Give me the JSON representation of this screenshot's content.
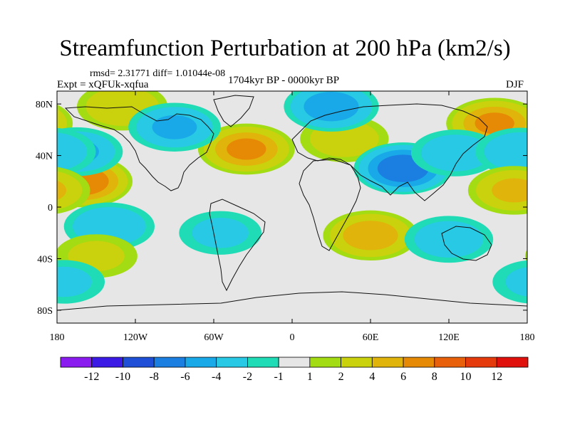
{
  "chart_data": {
    "type": "heatmap",
    "title": "Streamfunction Perturbation at 200 hPa (km2/s)",
    "stats_line": "rmsd= 2.31771 diff= 1.01044e-08",
    "experiment": "Expt = xQFUk-xqfua",
    "period": "1704kyr BP - 0000kyr BP",
    "season": "DJF",
    "xlim": [
      -180,
      180
    ],
    "ylim": [
      -90,
      90
    ],
    "x_ticks": [
      {
        "value": -180,
        "label": "180"
      },
      {
        "value": -120,
        "label": "120W"
      },
      {
        "value": -60,
        "label": "60W"
      },
      {
        "value": 0,
        "label": "0"
      },
      {
        "value": 60,
        "label": "60E"
      },
      {
        "value": 120,
        "label": "120E"
      },
      {
        "value": 180,
        "label": "180"
      }
    ],
    "y_ticks": [
      {
        "value": 80,
        "label": "80N"
      },
      {
        "value": 40,
        "label": "40N"
      },
      {
        "value": 0,
        "label": "0"
      },
      {
        "value": -40,
        "label": "40S"
      },
      {
        "value": -80,
        "label": "80S"
      }
    ],
    "colorbar": {
      "colors": [
        "#8a1cf0",
        "#3b1ae6",
        "#1f4fd6",
        "#1a7fe0",
        "#19a8e8",
        "#27c9e4",
        "#1fdcb6",
        "#e6e6e6",
        "#a3dc12",
        "#c9d20c",
        "#e0b40a",
        "#e68a06",
        "#e8600a",
        "#e43a0c",
        "#e0100c"
      ],
      "labels": [
        "-12",
        "-10",
        "-8",
        "-6",
        "-4",
        "-2",
        "-1",
        "1",
        "2",
        "4",
        "6",
        "8",
        "10",
        "12"
      ]
    },
    "anomaly_centers": [
      {
        "lon": -160,
        "lat": 20,
        "value": 7.5
      },
      {
        "lon": -35,
        "lat": 45,
        "value": 6
      },
      {
        "lon": 40,
        "lat": 53,
        "value": 3
      },
      {
        "lon": 155,
        "lat": 65,
        "value": 6
      },
      {
        "lon": -130,
        "lat": 78,
        "value": 3.5
      },
      {
        "lon": -90,
        "lat": 62,
        "value": -4
      },
      {
        "lon": 30,
        "lat": 78,
        "value": -5
      },
      {
        "lon": 85,
        "lat": 30,
        "value": -7.5
      },
      {
        "lon": 125,
        "lat": 42,
        "value": -3
      },
      {
        "lon": -165,
        "lat": 43,
        "value": -4
      },
      {
        "lon": 175,
        "lat": 43,
        "value": -3.5
      },
      {
        "lon": -140,
        "lat": -15,
        "value": -3.5
      },
      {
        "lon": -55,
        "lat": -20,
        "value": -2
      },
      {
        "lon": 60,
        "lat": -22,
        "value": 5
      },
      {
        "lon": 120,
        "lat": -25,
        "value": -3
      },
      {
        "lon": -150,
        "lat": -38,
        "value": 2
      },
      {
        "lon": -175,
        "lat": -58,
        "value": -2
      },
      {
        "lon": 170,
        "lat": 13,
        "value": 4
      }
    ]
  }
}
